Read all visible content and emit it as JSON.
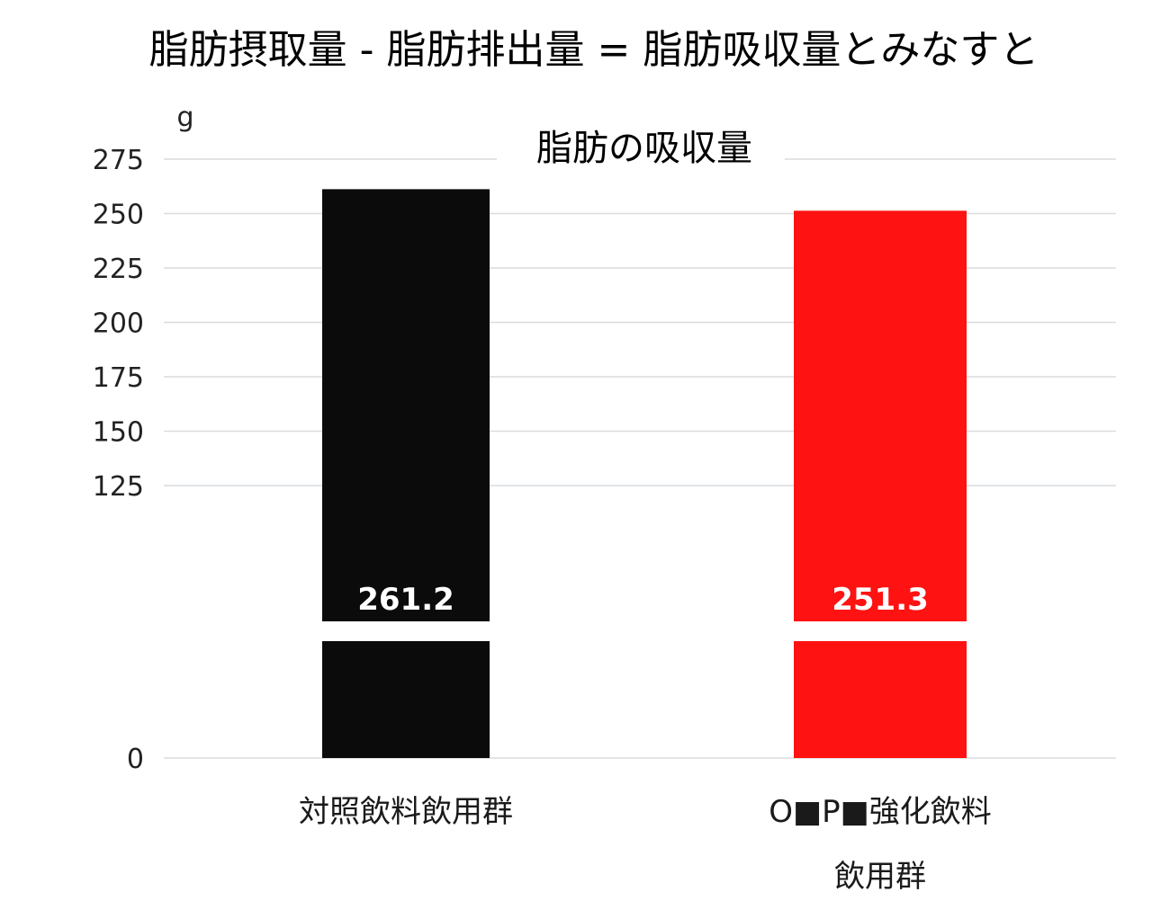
{
  "title": "脂肪摂取量 - 脂肪排出量 = 脂肪吸収量とみなすと",
  "chart_data": {
    "type": "bar",
    "title": "脂肪の吸収量",
    "unit_label": "g",
    "y_ticks": [
      0,
      125,
      150,
      175,
      200,
      225,
      250,
      275
    ],
    "axis_break": true,
    "ylim": [
      0,
      275
    ],
    "grid": true,
    "categories": [
      [
        "対照飲料飲用群"
      ],
      [
        "O■P■強化飲料",
        "飲用群"
      ]
    ],
    "values": [
      261.2,
      251.3
    ],
    "data_labels": [
      "261.2",
      "251.3"
    ],
    "colors": [
      "#0a0b0a",
      "#ff1212"
    ]
  }
}
